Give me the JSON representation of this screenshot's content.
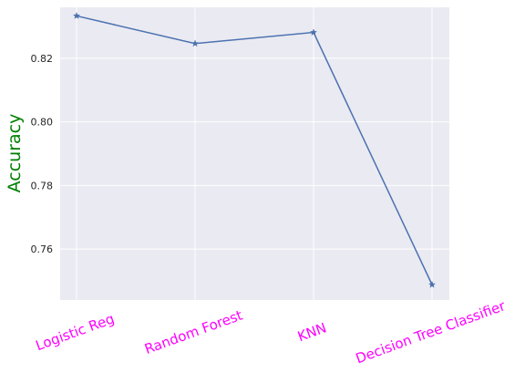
{
  "chart_data": {
    "type": "line",
    "categories": [
      "Logistic Reg",
      "Random Forest",
      "KNN",
      "Decision Tree Classifier"
    ],
    "series": [
      {
        "values": [
          0.8333,
          0.8246,
          0.8281,
          0.7488
        ],
        "color": "#4c72b0",
        "marker": "star"
      }
    ],
    "xlabel": "",
    "ylabel": "Accuracy",
    "ylim": [
      0.744,
      0.836
    ],
    "yticks": [
      "0.76",
      "0.78",
      "0.80",
      "0.82"
    ],
    "grid": true,
    "background_color": "#eaeaf2",
    "grid_color": "#ffffff",
    "xtick_color": "#ff00ff",
    "ylabel_color": "#008000"
  }
}
